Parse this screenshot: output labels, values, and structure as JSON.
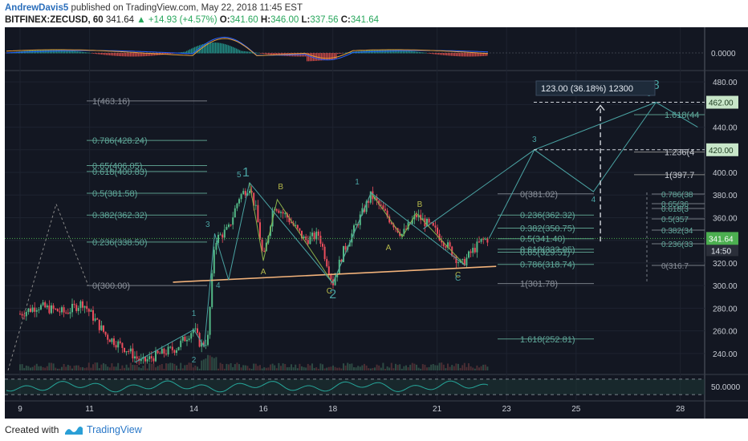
{
  "header": {
    "author": "AndrewDavis5",
    "published": "published on TradingView.com, May 22, 2018 11:45 EST",
    "symbol": "BITFINEX:ZECUSD, 60",
    "last": "341.64",
    "change": "+14.93 (+4.57%)",
    "open_label": "O:",
    "open": "341.60",
    "high_label": "H:",
    "high": "346.00",
    "low_label": "L:",
    "low": "337.56",
    "close_label": "C:",
    "close": "341.64"
  },
  "footer": {
    "created_with": "Created with",
    "brand": "TradingView"
  },
  "colors": {
    "background": "#131722",
    "up": "#53b987",
    "down": "#eb4d5c",
    "wave": "#4aa3a3",
    "support": "#f2b27a",
    "fib": "#5a9a8a",
    "fib_text": "#5fa89a",
    "fib_gray": "#777d86",
    "macd": "#e8a040",
    "signal": "#2962ff"
  },
  "chart_data": {
    "type": "candlestick",
    "symbol": "BITFINEX:ZECUSD",
    "timeframe": "60",
    "ylim": [
      225,
      490
    ],
    "y_ticks": [
      240,
      260,
      280,
      300,
      320,
      340,
      360,
      380,
      400,
      420,
      440,
      460,
      480
    ],
    "x_ticks": [
      "9",
      "11",
      "14",
      "16",
      "18",
      "21",
      "23",
      "25",
      "28"
    ],
    "price_scale_tags": [
      {
        "value": 462,
        "label": "462.00",
        "bg": "#c8e6c9"
      },
      {
        "value": 420,
        "label": "420.00",
        "bg": "#c8e6c9"
      },
      {
        "value": 341.64,
        "label": "341.64",
        "bg": "#4caf50",
        "sub": "14:50"
      }
    ],
    "close_path": [
      [
        "9",
        275
      ],
      [
        "9.5",
        282
      ],
      [
        "10.3",
        276
      ],
      [
        "10.8",
        285
      ],
      [
        "11.5",
        255
      ],
      [
        "12.1",
        243
      ],
      [
        "12.5",
        232
      ],
      [
        "12.9",
        238
      ],
      [
        "13.5",
        245
      ],
      [
        "14",
        262
      ],
      [
        "14.2",
        247
      ],
      [
        "14.4",
        252
      ],
      [
        "14.6",
        340
      ],
      [
        "15",
        350
      ],
      [
        "15.3",
        378
      ],
      [
        "15.6",
        388
      ],
      [
        "15.8",
        365
      ],
      [
        "16",
        322
      ],
      [
        "16.3",
        372
      ],
      [
        "16.7",
        360
      ],
      [
        "17.2",
        340
      ],
      [
        "17.6",
        345
      ],
      [
        "18",
        302
      ],
      [
        "18.3",
        330
      ],
      [
        "18.7",
        355
      ],
      [
        "19.1",
        380
      ],
      [
        "19.6",
        360
      ],
      [
        "20",
        345
      ],
      [
        "20.4",
        362
      ],
      [
        "20.9",
        350
      ],
      [
        "21.3",
        335
      ],
      [
        "21.7",
        318
      ],
      [
        "22",
        330
      ],
      [
        "22.3",
        340
      ],
      [
        "22.5",
        341.64
      ]
    ],
    "fib_left": [
      {
        "label": "1(463.16)",
        "value": 463.16
      },
      {
        "label": "0.786(428.24)",
        "value": 428.24
      },
      {
        "label": "0.65(406.05)",
        "value": 406.05
      },
      {
        "label": "0.618(400.83)",
        "value": 400.83
      },
      {
        "label": "0.5(381.58)",
        "value": 381.58
      },
      {
        "label": "0.382(362.32)",
        "value": 362.32
      },
      {
        "label": "0.236(338.50)",
        "value": 338.5
      },
      {
        "label": "0(300.00)",
        "value": 300.0
      }
    ],
    "fib_mid": [
      {
        "label": "0(381.02)",
        "value": 381.02
      },
      {
        "label": "0.236(362.32)",
        "value": 362.32
      },
      {
        "label": "0.382(350.75)",
        "value": 350.75
      },
      {
        "label": "0.5(341.40)",
        "value": 341.4
      },
      {
        "label": "0.618(332.05)",
        "value": 332.05
      },
      {
        "label": "0.65(329.51)",
        "value": 329.51
      },
      {
        "label": "0.786(318.74)",
        "value": 318.74
      },
      {
        "label": "1(301.78)",
        "value": 301.78
      },
      {
        "label": "1.618(252.81)",
        "value": 252.81
      }
    ],
    "fib_right": [
      {
        "label": "1.618(44",
        "value": 451
      },
      {
        "label": "1.236(4",
        "value": 418
      },
      {
        "label": "1(397.7",
        "value": 398
      }
    ],
    "fib_far": [
      "0.786(38",
      "0.65(36",
      "0.618(3",
      "0.5(357",
      "0.382(34",
      "0.236(33",
      "0(316.7"
    ],
    "measure": {
      "label": "123.00 (36.18%) 12300",
      "from": 339,
      "to": 462
    },
    "support_line": {
      "from": [
        "13.4",
        303
      ],
      "to": [
        "22.7",
        317
      ]
    },
    "wave_labels": [
      "1",
      "2",
      "3",
      "4",
      "5",
      "A",
      "B",
      "C",
      "2",
      "1",
      "A",
      "B",
      "C",
      "C",
      "3",
      "4",
      "5",
      "3"
    ],
    "macd": {
      "zero_label": "0.0000"
    },
    "rsi": {
      "level_label": "50.0000"
    }
  }
}
